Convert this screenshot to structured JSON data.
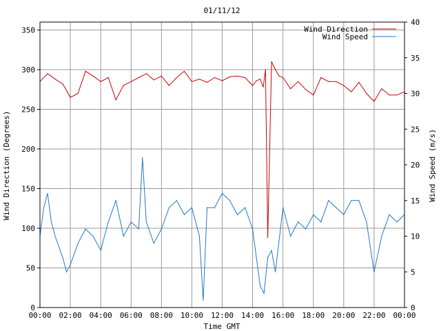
{
  "chart_data": {
    "type": "line",
    "title": "01/11/12",
    "xlabel": "Time GMT",
    "ylabel_left": "Wind Direction (Degrees)",
    "ylabel_right": "Wind Speed (m/s)",
    "x_ticks": [
      "00:00",
      "02:00",
      "04:00",
      "06:00",
      "08:00",
      "10:00",
      "12:00",
      "14:00",
      "16:00",
      "18:00",
      "20:00",
      "22:00",
      "00:00"
    ],
    "xlim_hours": [
      0,
      24
    ],
    "ylim_left": [
      0,
      360
    ],
    "ylim_right": [
      0,
      40
    ],
    "y_ticks_left": [
      0,
      50,
      100,
      150,
      200,
      250,
      300,
      350
    ],
    "y_ticks_right": [
      0,
      5,
      10,
      15,
      20,
      25,
      30,
      35,
      40
    ],
    "grid": true,
    "legend_position": "top-right",
    "series": [
      {
        "name": "Wind Direction",
        "axis": "left",
        "color": "#cc0000",
        "x": [
          0,
          0.5,
          1,
          1.5,
          2,
          2.5,
          3,
          3.5,
          4,
          4.5,
          5,
          5.5,
          6,
          6.5,
          7,
          7.5,
          8,
          8.5,
          9,
          9.5,
          10,
          10.5,
          11,
          11.5,
          12,
          12.5,
          13,
          13.5,
          14,
          14.25,
          14.5,
          14.7,
          14.85,
          15,
          15.25,
          15.5,
          15.75,
          16,
          16.5,
          17,
          17.5,
          18,
          18.5,
          19,
          19.5,
          20,
          20.5,
          21,
          21.5,
          22,
          22.5,
          23,
          23.5,
          24
        ],
        "values": [
          285,
          295,
          288,
          282,
          265,
          270,
          298,
          292,
          285,
          290,
          262,
          280,
          285,
          290,
          295,
          287,
          292,
          280,
          290,
          298,
          285,
          288,
          284,
          290,
          286,
          291,
          292,
          290,
          280,
          286,
          288,
          278,
          300,
          88,
          310,
          300,
          292,
          290,
          276,
          285,
          275,
          268,
          290,
          285,
          285,
          280,
          272,
          284,
          270,
          260,
          276,
          268,
          268,
          272
        ]
      },
      {
        "name": "Wind Speed",
        "axis": "right",
        "color": "#1f78c8",
        "x": [
          0,
          0.25,
          0.5,
          0.75,
          1,
          1.5,
          1.75,
          2,
          2.5,
          3,
          3.5,
          4,
          4.5,
          5,
          5.5,
          6,
          6.5,
          6.75,
          7,
          7.5,
          8,
          8.5,
          9,
          9.5,
          10,
          10.5,
          10.75,
          11,
          11.5,
          12,
          12.5,
          13,
          13.5,
          14,
          14.25,
          14.5,
          14.75,
          15,
          15.25,
          15.5,
          16,
          16.5,
          17,
          17.5,
          18,
          18.5,
          19,
          19.5,
          20,
          20.5,
          21,
          21.5,
          22,
          22.5,
          23,
          23.5,
          24
        ],
        "values": [
          10,
          14,
          16,
          12,
          10,
          7,
          5,
          6,
          9,
          11,
          10,
          8,
          12,
          15,
          10,
          12,
          11,
          21,
          12,
          9,
          11,
          14,
          15,
          13,
          14,
          10,
          1,
          14,
          14,
          16,
          15,
          13,
          14,
          11,
          7,
          3,
          2,
          7,
          8,
          5,
          14,
          10,
          12,
          11,
          13,
          12,
          15,
          14,
          13,
          15,
          15,
          12,
          5,
          10,
          13,
          12,
          13
        ]
      }
    ]
  }
}
